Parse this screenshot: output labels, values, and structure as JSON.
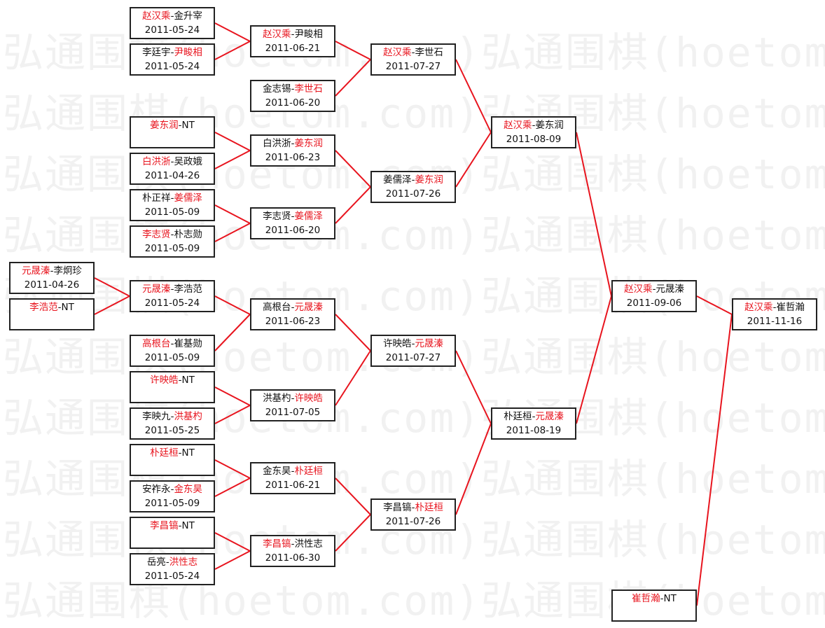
{
  "watermark": "弘通围棋(hoetom.com)弘通围棋(hoetom.com)",
  "colors": {
    "winner": "#e8141e",
    "line": "#e8141e",
    "border": "#222222"
  },
  "matches": [
    {
      "id": "a1",
      "p1": "元晟溱",
      "p2": "李炯珍",
      "winner": 1,
      "date": "2011-04-26"
    },
    {
      "id": "a2",
      "p1": "李浩范",
      "p2": "NT",
      "winner": 1,
      "date": ""
    },
    {
      "id": "b1",
      "p1": "赵汉乘",
      "p2": "金升宰",
      "winner": 1,
      "date": "2011-05-24"
    },
    {
      "id": "b2",
      "p1": "李廷宇",
      "p2": "尹畯相",
      "winner": 2,
      "date": "2011-05-24"
    },
    {
      "id": "b3",
      "p1": "姜东润",
      "p2": "NT",
      "winner": 1,
      "date": ""
    },
    {
      "id": "b4",
      "p1": "白洪浙",
      "p2": "吴政娥",
      "winner": 1,
      "date": "2011-04-26"
    },
    {
      "id": "b5",
      "p1": "朴正祥",
      "p2": "姜儒泽",
      "winner": 2,
      "date": "2011-05-09"
    },
    {
      "id": "b6",
      "p1": "李志贤",
      "p2": "朴志勋",
      "winner": 1,
      "date": "2011-05-09"
    },
    {
      "id": "b7",
      "p1": "元晟溱",
      "p2": "李浩范",
      "winner": 1,
      "date": "2011-05-24"
    },
    {
      "id": "b8",
      "p1": "高根台",
      "p2": "崔基勋",
      "winner": 1,
      "date": "2011-05-09"
    },
    {
      "id": "b9",
      "p1": "许映皓",
      "p2": "NT",
      "winner": 1,
      "date": ""
    },
    {
      "id": "b10",
      "p1": "李映九",
      "p2": "洪基杓",
      "winner": 2,
      "date": "2011-05-25"
    },
    {
      "id": "b11",
      "p1": "朴廷桓",
      "p2": "NT",
      "winner": 1,
      "date": ""
    },
    {
      "id": "b12",
      "p1": "安祚永",
      "p2": "金东昊",
      "winner": 2,
      "date": "2011-05-09"
    },
    {
      "id": "b13",
      "p1": "李昌镐",
      "p2": "NT",
      "winner": 1,
      "date": ""
    },
    {
      "id": "b14",
      "p1": "岳亮",
      "p2": "洪性志",
      "winner": 2,
      "date": "2011-05-24"
    },
    {
      "id": "c1",
      "p1": "赵汉乘",
      "p2": "尹畯相",
      "winner": 1,
      "date": "2011-06-21"
    },
    {
      "id": "c2",
      "p1": "金志锡",
      "p2": "李世石",
      "winner": 2,
      "date": "2011-06-20"
    },
    {
      "id": "c3",
      "p1": "白洪浙",
      "p2": "姜东润",
      "winner": 2,
      "date": "2011-06-23"
    },
    {
      "id": "c4",
      "p1": "李志贤",
      "p2": "姜儒泽",
      "winner": 2,
      "date": "2011-06-20"
    },
    {
      "id": "c5",
      "p1": "高根台",
      "p2": "元晟溱",
      "winner": 2,
      "date": "2011-06-23"
    },
    {
      "id": "c6",
      "p1": "洪基杓",
      "p2": "许映皓",
      "winner": 2,
      "date": "2011-07-05"
    },
    {
      "id": "c7",
      "p1": "金东昊",
      "p2": "朴廷桓",
      "winner": 2,
      "date": "2011-06-21"
    },
    {
      "id": "c8",
      "p1": "李昌镐",
      "p2": "洪性志",
      "winner": 1,
      "date": "2011-06-30"
    },
    {
      "id": "d1",
      "p1": "赵汉乘",
      "p2": "李世石",
      "winner": 1,
      "date": "2011-07-27"
    },
    {
      "id": "d2",
      "p1": "姜儒泽",
      "p2": "姜东润",
      "winner": 2,
      "date": "2011-07-26"
    },
    {
      "id": "d3",
      "p1": "许映皓",
      "p2": "元晟溱",
      "winner": 2,
      "date": "2011-07-27"
    },
    {
      "id": "d4",
      "p1": "李昌镐",
      "p2": "朴廷桓",
      "winner": 2,
      "date": "2011-07-26"
    },
    {
      "id": "e1",
      "p1": "赵汉乘",
      "p2": "姜东润",
      "winner": 1,
      "date": "2011-08-09"
    },
    {
      "id": "e2",
      "p1": "朴廷桓",
      "p2": "元晟溱",
      "winner": 2,
      "date": "2011-08-19"
    },
    {
      "id": "f1",
      "p1": "赵汉乘",
      "p2": "元晟溱",
      "winner": 1,
      "date": "2011-09-06"
    },
    {
      "id": "f2",
      "p1": "崔哲瀚",
      "p2": "NT",
      "winner": 1,
      "date": ""
    },
    {
      "id": "g1",
      "p1": "赵汉乘",
      "p2": "崔哲瀚",
      "winner": 1,
      "date": "2011-11-16"
    }
  ],
  "links": [
    [
      "a1",
      "b7"
    ],
    [
      "a2",
      "b7"
    ],
    [
      "b1",
      "c1"
    ],
    [
      "b2",
      "c1"
    ],
    [
      "b3",
      "c3"
    ],
    [
      "b4",
      "c3"
    ],
    [
      "b5",
      "c4"
    ],
    [
      "b6",
      "c4"
    ],
    [
      "b7",
      "c5"
    ],
    [
      "b8",
      "c5"
    ],
    [
      "b9",
      "c6"
    ],
    [
      "b10",
      "c6"
    ],
    [
      "b11",
      "c7"
    ],
    [
      "b12",
      "c7"
    ],
    [
      "b13",
      "c8"
    ],
    [
      "b14",
      "c8"
    ],
    [
      "c1",
      "d1"
    ],
    [
      "c2",
      "d1"
    ],
    [
      "c3",
      "d2"
    ],
    [
      "c4",
      "d2"
    ],
    [
      "c5",
      "d3"
    ],
    [
      "c6",
      "d3"
    ],
    [
      "c7",
      "d4"
    ],
    [
      "c8",
      "d4"
    ],
    [
      "d1",
      "e1"
    ],
    [
      "d2",
      "e1"
    ],
    [
      "d3",
      "e2"
    ],
    [
      "d4",
      "e2"
    ],
    [
      "e1",
      "f1"
    ],
    [
      "e2",
      "f1"
    ],
    [
      "f1",
      "g1"
    ],
    [
      "f2",
      "g1"
    ]
  ]
}
